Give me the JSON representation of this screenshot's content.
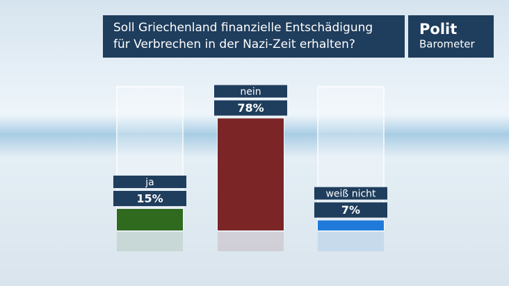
{
  "chart_data": {
    "type": "bar",
    "title_lines": [
      "Soll Griechenland finanzielle Entschädigung",
      "für Verbrechen in der Nazi-Zeit erhalten?"
    ],
    "logo": [
      "Polit",
      "Barometer"
    ],
    "categories": [
      "ja",
      "nein",
      "weiß nicht"
    ],
    "values": [
      15,
      78,
      7
    ],
    "value_labels": [
      "15%",
      "78%",
      "7%"
    ],
    "colors": [
      "#2f6a1f",
      "#7b2526",
      "#1f7ad9"
    ],
    "ylim": [
      0,
      100
    ]
  }
}
